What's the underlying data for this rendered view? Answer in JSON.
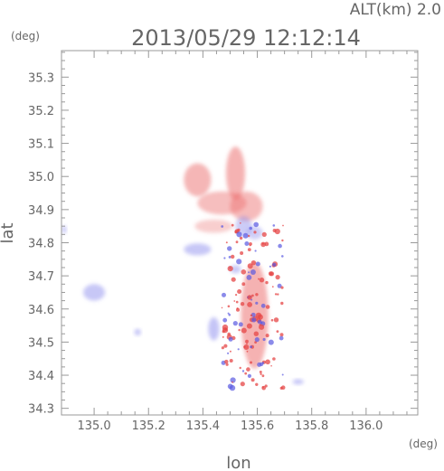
{
  "header": {
    "altitude_label": "ALT(km) 2.0",
    "timestamp": "2013/05/29 12:12:14"
  },
  "chart_data": {
    "type": "heatmap",
    "title": "2013/05/29 12:12:14",
    "subtitle": "ALT(km) 2.0",
    "xlabel": "lon",
    "ylabel": "lat",
    "x_unit": "(deg)",
    "y_unit": "(deg)",
    "xlim": [
      134.88,
      136.19
    ],
    "ylim": [
      34.28,
      35.38
    ],
    "x_ticks": [
      135.0,
      135.2,
      135.4,
      135.6,
      135.8,
      136.0
    ],
    "x_tick_labels": [
      "135.0",
      "135.2",
      "135.4",
      "135.6",
      "135.8",
      "136.0"
    ],
    "y_ticks": [
      34.3,
      34.4,
      34.5,
      34.6,
      34.7,
      34.8,
      34.9,
      35.0,
      35.1,
      35.2,
      35.3
    ],
    "y_tick_labels": [
      "34.3",
      "34.4",
      "34.5",
      "34.6",
      "34.7",
      "34.8",
      "34.9",
      "35.0",
      "35.1",
      "35.2",
      "35.3"
    ],
    "grid": false,
    "colors": {
      "positive": "#f08080",
      "negative": "#8f8fef",
      "axis": "#999999"
    },
    "regions": [
      {
        "name": "north-cell",
        "lon": 135.52,
        "lat": 35.01,
        "rlon": 0.035,
        "rlat": 0.08,
        "value": 0.6
      },
      {
        "name": "northwest-cell",
        "lon": 135.38,
        "lat": 34.99,
        "rlon": 0.05,
        "rlat": 0.05,
        "value": 0.55
      },
      {
        "name": "central-band",
        "lon": 135.47,
        "lat": 34.92,
        "rlon": 0.09,
        "rlat": 0.035,
        "value": 0.45
      },
      {
        "name": "central-band-east",
        "lon": 135.56,
        "lat": 34.91,
        "rlon": 0.06,
        "rlat": 0.045,
        "value": 0.5
      },
      {
        "name": "transition-zone",
        "lon": 135.44,
        "lat": 34.85,
        "rlon": 0.07,
        "rlat": 0.02,
        "value": 0.2
      },
      {
        "name": "south-cell-a",
        "lon": 135.55,
        "lat": 34.85,
        "rlon": 0.03,
        "rlat": 0.03,
        "value": -0.35
      },
      {
        "name": "south-cell-b",
        "lon": 135.59,
        "lat": 34.83,
        "rlon": 0.03,
        "rlat": 0.02,
        "value": -0.3
      },
      {
        "name": "west-cell",
        "lon": 135.38,
        "lat": 34.78,
        "rlon": 0.05,
        "rlat": 0.018,
        "value": -0.45
      },
      {
        "name": "far-west-cell",
        "lon": 135.0,
        "lat": 34.65,
        "rlon": 0.04,
        "rlat": 0.025,
        "value": -0.45
      },
      {
        "name": "edge-west-cell",
        "lon": 134.89,
        "lat": 34.84,
        "rlon": 0.008,
        "rlat": 0.012,
        "value": -0.5
      },
      {
        "name": "southwest-cell",
        "lon": 135.16,
        "lat": 34.53,
        "rlon": 0.012,
        "rlat": 0.01,
        "value": -0.5
      },
      {
        "name": "south-central-cell",
        "lon": 135.44,
        "lat": 34.54,
        "rlon": 0.02,
        "rlat": 0.035,
        "value": -0.5
      },
      {
        "name": "southeast-cell",
        "lon": 135.75,
        "lat": 34.38,
        "rlon": 0.02,
        "rlat": 0.008,
        "value": -0.5
      },
      {
        "name": "core-column",
        "lon": 135.59,
        "lat": 34.58,
        "rlon": 0.05,
        "rlat": 0.16,
        "value": 0.6
      },
      {
        "name": "mid-west-cell",
        "lon": 135.52,
        "lat": 34.72,
        "rlon": 0.02,
        "rlat": 0.012,
        "value": -0.45
      }
    ]
  }
}
